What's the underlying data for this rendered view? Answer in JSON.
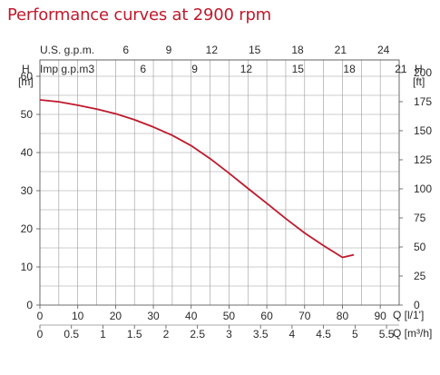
{
  "title": "Performance curves at 2900 rpm",
  "colors": {
    "curve": "#c0192c",
    "grid": "#9a9a9a",
    "title": "#c0192c"
  },
  "top_scales": {
    "usgpm": {
      "label": "U.S. g.p.m.",
      "ticks": [
        6,
        9,
        12,
        15,
        18,
        21,
        24
      ],
      "q_per_unit": 3.785
    },
    "impgpm": {
      "label": "Imp g.p.m.",
      "ticks": [
        3,
        6,
        9,
        12,
        15,
        18,
        21
      ],
      "q_per_unit": 4.546
    }
  },
  "left_axis": {
    "symbol": "H",
    "unit": "[m]"
  },
  "right_axis": {
    "symbol": "H",
    "unit": "[ft]"
  },
  "bottom_axis_lmin": {
    "label": "Q [l/1']"
  },
  "bottom_axis_m3h": {
    "label": "Q [m³/h]"
  },
  "chart_data": {
    "type": "line",
    "title": "Performance curves at 2900 rpm",
    "xlabel": "Q [l/1']",
    "x2label": "Q [m³/h]",
    "ylabel": "H [m]",
    "y2label": "H [ft]",
    "xlim": [
      0,
      95
    ],
    "ylim": [
      0,
      60
    ],
    "x_ticks": [
      0,
      10,
      20,
      30,
      40,
      50,
      60,
      70,
      80,
      90
    ],
    "y_ticks": [
      0,
      10,
      20,
      30,
      40,
      50,
      60
    ],
    "x2_ticks": [
      0,
      0.5,
      1,
      1.5,
      2,
      2.5,
      3,
      3.5,
      4,
      4.5,
      5,
      5.5
    ],
    "y2_ticks": [
      0,
      25,
      50,
      75,
      100,
      125,
      150,
      175,
      200
    ],
    "grid": true,
    "series": [
      {
        "x": [
          0,
          5,
          10,
          15,
          20,
          25,
          30,
          35,
          40,
          45,
          50,
          55,
          60,
          65,
          70,
          75,
          80,
          83
        ],
        "y": [
          53.8,
          53.3,
          52.4,
          51.4,
          50.2,
          48.6,
          46.7,
          44.5,
          41.8,
          38.4,
          34.6,
          30.6,
          26.7,
          22.7,
          18.9,
          15.6,
          12.5,
          13.2
        ]
      }
    ]
  }
}
